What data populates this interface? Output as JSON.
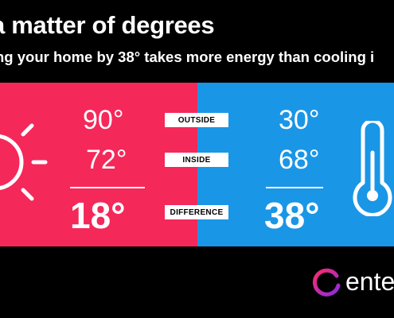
{
  "title": "a matter of degrees",
  "subtitle": "ng your home by 38° takes more energy than cooling i",
  "colors": {
    "hot": "#f5285a",
    "cold": "#1a96e6"
  },
  "hot_side": {
    "outside": "90°",
    "inside": "72°",
    "difference": "18°",
    "icon": "sun-icon"
  },
  "cold_side": {
    "outside": "30°",
    "inside": "68°",
    "difference": "38°",
    "icon": "thermometer-icon"
  },
  "labels": {
    "outside": "OUTSIDE",
    "inside": "INSIDE",
    "difference": "DIFFERENCE"
  },
  "brand": {
    "name": "ente",
    "icon": "entergy-logo-icon"
  }
}
